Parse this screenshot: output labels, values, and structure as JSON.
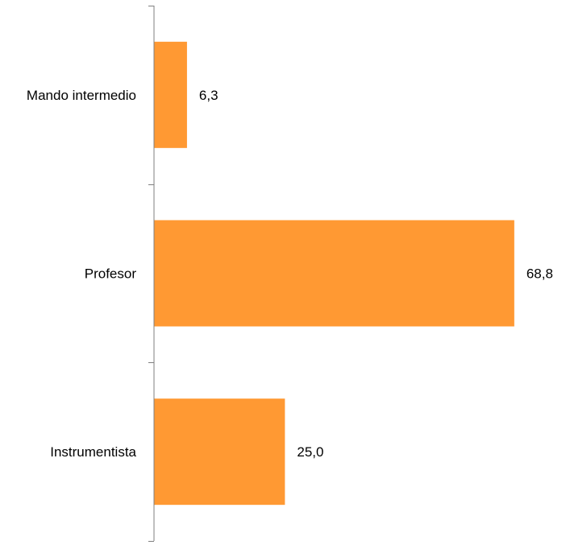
{
  "chart_data": {
    "type": "bar",
    "orientation": "horizontal",
    "categories": [
      "Mando intermedio",
      "Profesor",
      "Instrumentista"
    ],
    "values": [
      6.3,
      68.8,
      25.0
    ],
    "value_labels": [
      "6,3",
      "68,8",
      "25,0"
    ],
    "title": "",
    "xlabel": "",
    "ylabel": "",
    "xlim": [
      0,
      70
    ],
    "grid": false,
    "legend": "none",
    "bar_color": "#FF9933",
    "axis_color": "#7f7f7f"
  }
}
